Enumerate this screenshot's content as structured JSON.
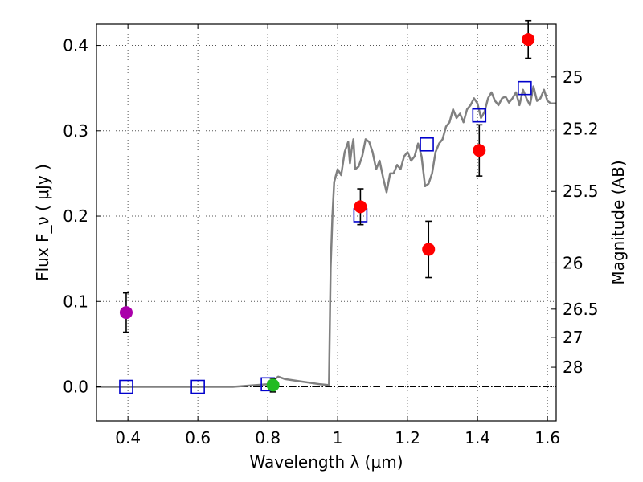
{
  "chart_data": {
    "type": "scatter",
    "xlabel": "Wavelength  λ (μm)",
    "ylabel": "Flux  F_ν  ( μJy )",
    "ylabel_right": "Magnitude (AB)",
    "xlim": [
      0.31,
      1.625
    ],
    "ylim": [
      -0.04,
      0.425
    ],
    "x_ticks": [
      0.4,
      0.6,
      0.8,
      1.0,
      1.2,
      1.4,
      1.6
    ],
    "x_tick_labels": [
      "0.4",
      "0.6",
      "0.8",
      "1",
      "1.2",
      "1.4",
      "1.6"
    ],
    "y_ticks": [
      0.0,
      0.1,
      0.2,
      0.3,
      0.4
    ],
    "y_tick_labels": [
      "0.0",
      "0.1",
      "0.2",
      "0.3",
      "0.4"
    ],
    "right_ticks": [
      {
        "label": "25",
        "flux": 0.363
      },
      {
        "label": "25.2",
        "flux": 0.302
      },
      {
        "label": "25.5",
        "flux": 0.229
      },
      {
        "label": "26",
        "flux": 0.145
      },
      {
        "label": "26.5",
        "flux": 0.091
      },
      {
        "label": "27",
        "flux": 0.058
      },
      {
        "label": "28",
        "flux": 0.023
      }
    ],
    "zero_line": 0.0,
    "grid": true,
    "model_sed": {
      "color": "#808080",
      "x": [
        0.31,
        0.5,
        0.7,
        0.8,
        0.83,
        0.85,
        0.9,
        0.95,
        0.975,
        0.98,
        0.985,
        0.99,
        1.0,
        1.01,
        1.02,
        1.03,
        1.035,
        1.04,
        1.045,
        1.05,
        1.06,
        1.07,
        1.08,
        1.09,
        1.1,
        1.11,
        1.12,
        1.13,
        1.14,
        1.15,
        1.16,
        1.17,
        1.18,
        1.19,
        1.2,
        1.21,
        1.22,
        1.23,
        1.24,
        1.25,
        1.26,
        1.27,
        1.28,
        1.29,
        1.3,
        1.31,
        1.32,
        1.33,
        1.34,
        1.35,
        1.36,
        1.37,
        1.38,
        1.39,
        1.4,
        1.41,
        1.42,
        1.43,
        1.44,
        1.45,
        1.46,
        1.47,
        1.48,
        1.49,
        1.5,
        1.51,
        1.52,
        1.53,
        1.54,
        1.55,
        1.56,
        1.57,
        1.58,
        1.59,
        1.6,
        1.61,
        1.625
      ],
      "y": [
        0.0,
        0.0,
        0.0,
        0.003,
        0.012,
        0.009,
        0.006,
        0.003,
        0.002,
        0.14,
        0.2,
        0.24,
        0.255,
        0.248,
        0.275,
        0.287,
        0.262,
        0.278,
        0.29,
        0.255,
        0.258,
        0.27,
        0.29,
        0.287,
        0.275,
        0.255,
        0.265,
        0.245,
        0.228,
        0.25,
        0.25,
        0.26,
        0.255,
        0.27,
        0.275,
        0.265,
        0.27,
        0.285,
        0.27,
        0.235,
        0.238,
        0.25,
        0.275,
        0.285,
        0.29,
        0.305,
        0.31,
        0.325,
        0.315,
        0.32,
        0.31,
        0.325,
        0.33,
        0.338,
        0.332,
        0.315,
        0.322,
        0.338,
        0.345,
        0.335,
        0.33,
        0.338,
        0.34,
        0.333,
        0.338,
        0.345,
        0.33,
        0.348,
        0.338,
        0.33,
        0.352,
        0.335,
        0.338,
        0.348,
        0.335,
        0.332,
        0.332
      ]
    },
    "model_points": {
      "marker": "open-square",
      "color": "#0000cc",
      "points": [
        {
          "x": 0.395,
          "y": 0.0
        },
        {
          "x": 0.6,
          "y": 0.0
        },
        {
          "x": 0.8,
          "y": 0.003
        },
        {
          "x": 1.065,
          "y": 0.201
        },
        {
          "x": 1.255,
          "y": 0.284
        },
        {
          "x": 1.405,
          "y": 0.318
        },
        {
          "x": 1.535,
          "y": 0.35
        }
      ]
    },
    "observed": {
      "marker": "filled-circle",
      "points": [
        {
          "x": 0.395,
          "y": 0.087,
          "err": 0.023,
          "color": "#aa00aa"
        },
        {
          "x": 0.815,
          "y": 0.002,
          "err": 0.008,
          "color": "#22bb22"
        },
        {
          "x": 1.065,
          "y": 0.211,
          "err": 0.021,
          "color": "#ff0000"
        },
        {
          "x": 1.26,
          "y": 0.161,
          "err": 0.033,
          "color": "#ff0000"
        },
        {
          "x": 1.405,
          "y": 0.277,
          "err": 0.03,
          "color": "#ff0000"
        },
        {
          "x": 1.545,
          "y": 0.407,
          "err": 0.022,
          "color": "#ff0000"
        }
      ]
    }
  }
}
